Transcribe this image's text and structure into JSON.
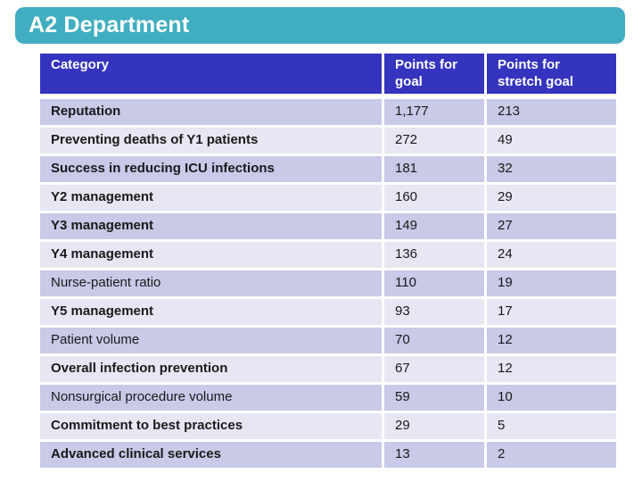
{
  "title": "A2 Department",
  "colors": {
    "banner": "#40AEC0",
    "header": "#3434BF",
    "header_text": "#FFFFFF",
    "row_dark": "#C9C9E8",
    "row_light": "#E7E7F3",
    "text": "#1A1A1A"
  },
  "table": {
    "headers": [
      "Category",
      "Points for goal",
      "Points for stretch goal"
    ],
    "rows": [
      {
        "category": "Reputation",
        "goal": "1,177",
        "stretch": "213",
        "bold": true
      },
      {
        "category": "Preventing deaths of Y1 patients",
        "goal": "272",
        "stretch": "49",
        "bold": true
      },
      {
        "category": "Success in reducing ICU infections",
        "goal": "181",
        "stretch": "32",
        "bold": true
      },
      {
        "category": "Y2 management",
        "goal": "160",
        "stretch": "29",
        "bold": true
      },
      {
        "category": "Y3 management",
        "goal": "149",
        "stretch": "27",
        "bold": true
      },
      {
        "category": "Y4 management",
        "goal": "136",
        "stretch": "24",
        "bold": true
      },
      {
        "category": "Nurse-patient ratio",
        "goal": "110",
        "stretch": "19",
        "bold": false
      },
      {
        "category": "Y5 management",
        "goal": "93",
        "stretch": "17",
        "bold": true
      },
      {
        "category": "Patient volume",
        "goal": "70",
        "stretch": "12",
        "bold": false
      },
      {
        "category": "Overall infection prevention",
        "goal": "67",
        "stretch": "12",
        "bold": true
      },
      {
        "category": "Nonsurgical procedure volume",
        "goal": "59",
        "stretch": "10",
        "bold": false
      },
      {
        "category": "Commitment to best practices",
        "goal": "29",
        "stretch": "5",
        "bold": true
      },
      {
        "category": "Advanced clinical services",
        "goal": "13",
        "stretch": "2",
        "bold": true
      }
    ]
  }
}
